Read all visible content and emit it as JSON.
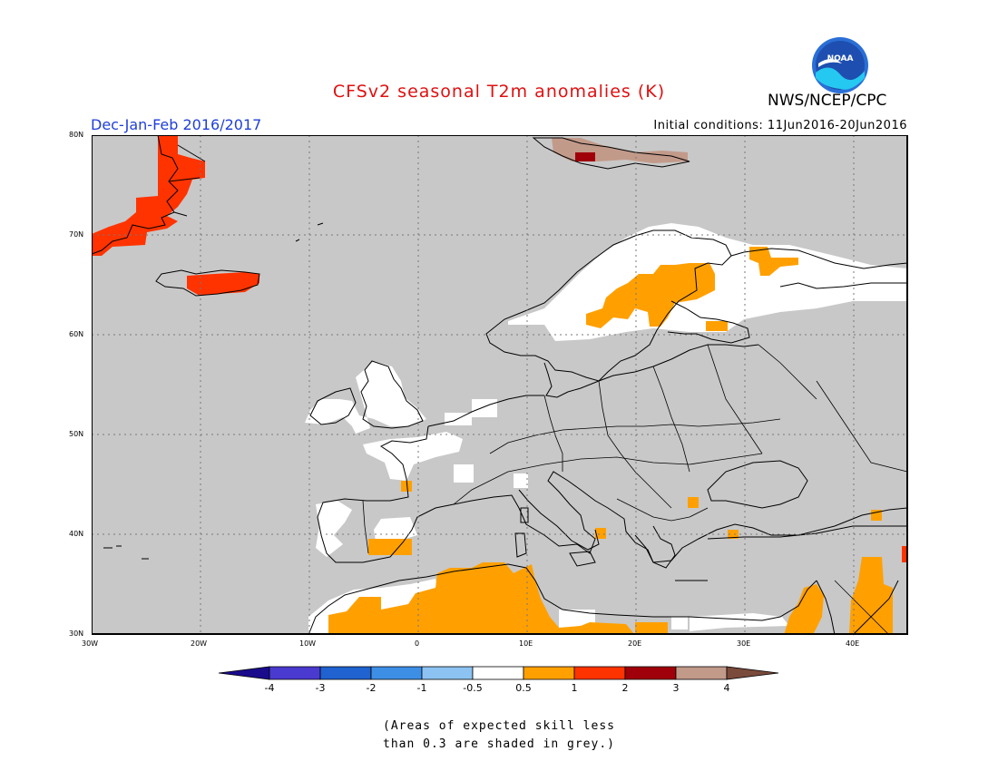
{
  "title": "CFSv2 seasonal T2m anomalies (K)",
  "season": "Dec-Jan-Feb 2016/2017",
  "initial_conditions": "Initial conditions: 11Jun2016-20Jun2016",
  "agency": "NWS/NCEP/CPC",
  "logo_text": "NOAA",
  "lat_labels": [
    "80N",
    "70N",
    "60N",
    "50N",
    "40N",
    "30N"
  ],
  "lon_labels": [
    "30W",
    "20W",
    "10W",
    "0",
    "10E",
    "20E",
    "30E",
    "40E"
  ],
  "colorbar": {
    "labels": [
      "-4",
      "-3",
      "-2",
      "-1",
      "-0.5",
      "0.5",
      "1",
      "2",
      "3",
      "4"
    ],
    "colors": [
      "#1a0b8c",
      "#4a3ad0",
      "#1f62d0",
      "#3d8fe6",
      "#8cc3f2",
      "#ffffff",
      "#ffa000",
      "#ff3300",
      "#a0000a",
      "#c29a8a",
      "#7a4a3a"
    ]
  },
  "note_line1": "(Areas of expected skill less",
  "note_line2": "than 0.3 are shaded in grey.)",
  "colors": {
    "grey_no_skill": "#c8c8c8",
    "white_neutral": "#ffffff",
    "orange_0_5_1": "#ffa000",
    "red_1_2": "#ff3300",
    "darkred_2_3": "#a0000a",
    "tan_3_4": "#c29a8a",
    "title_red": "#e01010",
    "season_blue": "#1f3fd8"
  }
}
